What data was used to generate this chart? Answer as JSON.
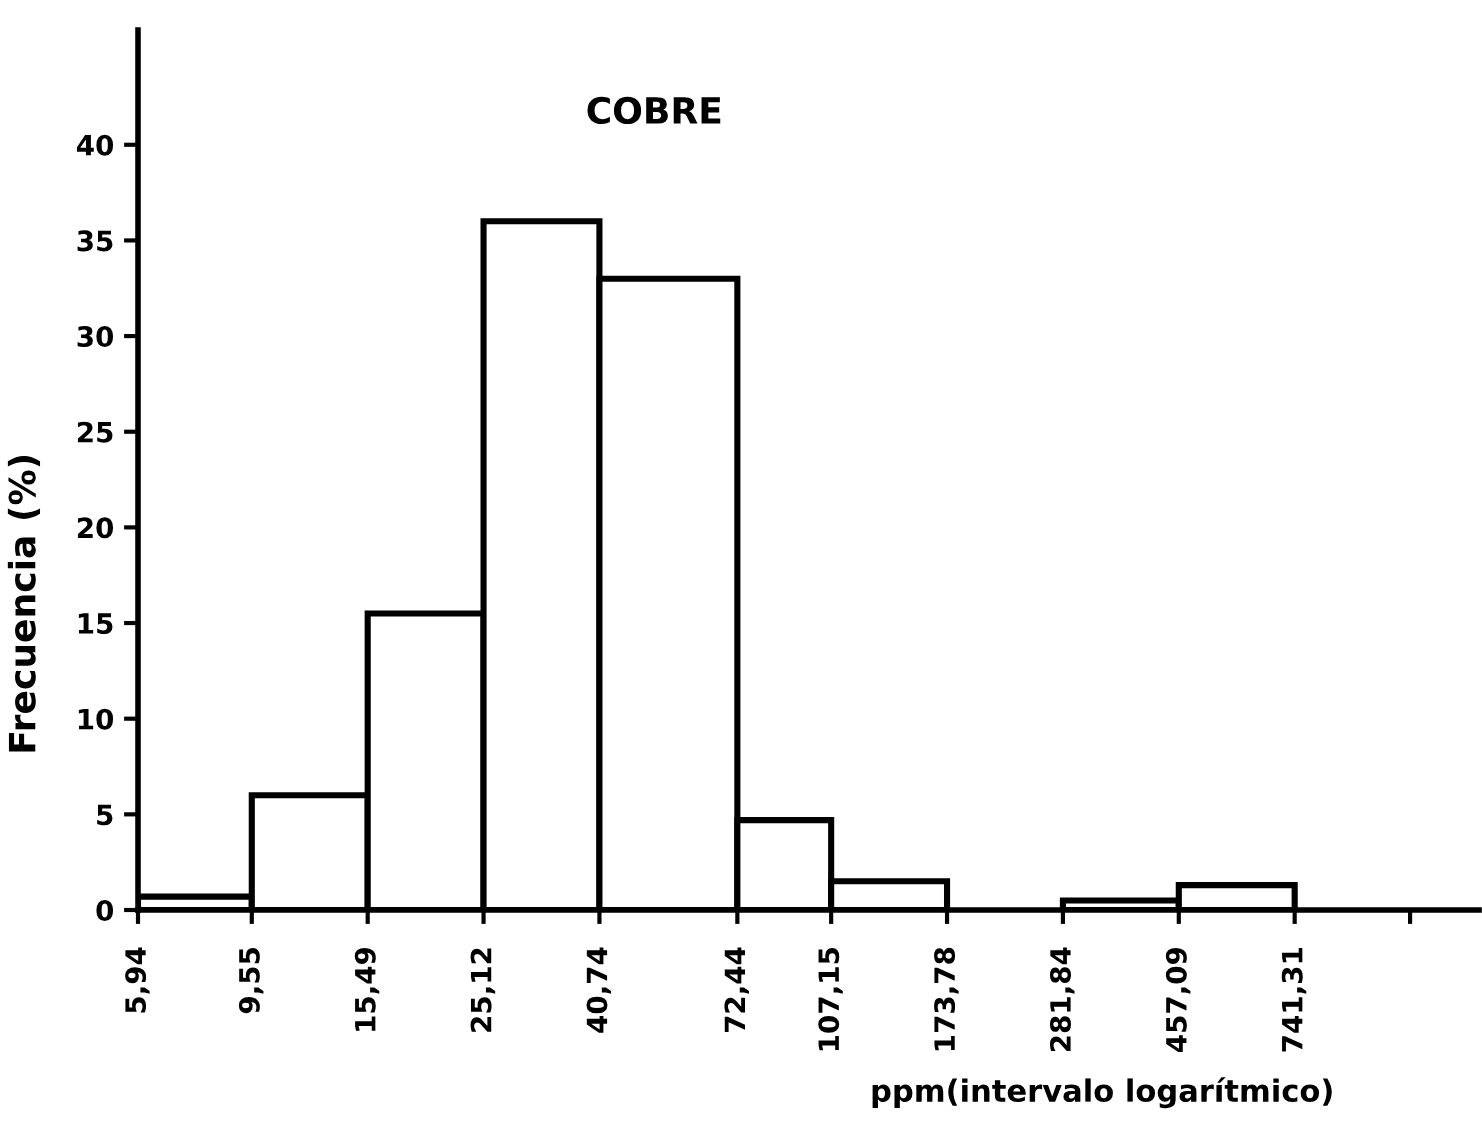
{
  "chart_data": {
    "type": "histogram",
    "title": "COBRE",
    "xlabel": "ppm(intervalo logarítmico)",
    "ylabel": "Frecuencia (%)",
    "bins": [
      5.94,
      9.55,
      15.49,
      25.12,
      40.74,
      72.44,
      107.15,
      173.78,
      281.84,
      457.09,
      741.31
    ],
    "values": [
      0.7,
      6,
      15.5,
      36,
      33,
      4.7,
      1.5,
      null,
      0.5,
      1.3
    ],
    "color": "#ffffff",
    "log": "x",
    "xlim": [
      5.94,
      1600
    ],
    "xticks": [
      {
        "value": 5.94,
        "label": "5,94"
      },
      {
        "value": 9.55,
        "label": "9,55"
      },
      {
        "value": 15.49,
        "label": "15,49"
      },
      {
        "value": 25.12,
        "label": "25,12"
      },
      {
        "value": 40.74,
        "label": "40,74"
      },
      {
        "value": 72.44,
        "label": "72,44"
      },
      {
        "value": 107.15,
        "label": "107,15"
      },
      {
        "value": 173.78,
        "label": "173,78"
      },
      {
        "value": 281.84,
        "label": "281,84"
      },
      {
        "value": 457.09,
        "label": "457,09"
      },
      {
        "value": 741.31,
        "label": "741,31"
      },
      {
        "value": 1200,
        "label": null
      }
    ],
    "ylim": [
      0,
      46
    ],
    "yticks": [
      0,
      5,
      10,
      15,
      20,
      25,
      30,
      35,
      40
    ],
    "grid": false
  }
}
